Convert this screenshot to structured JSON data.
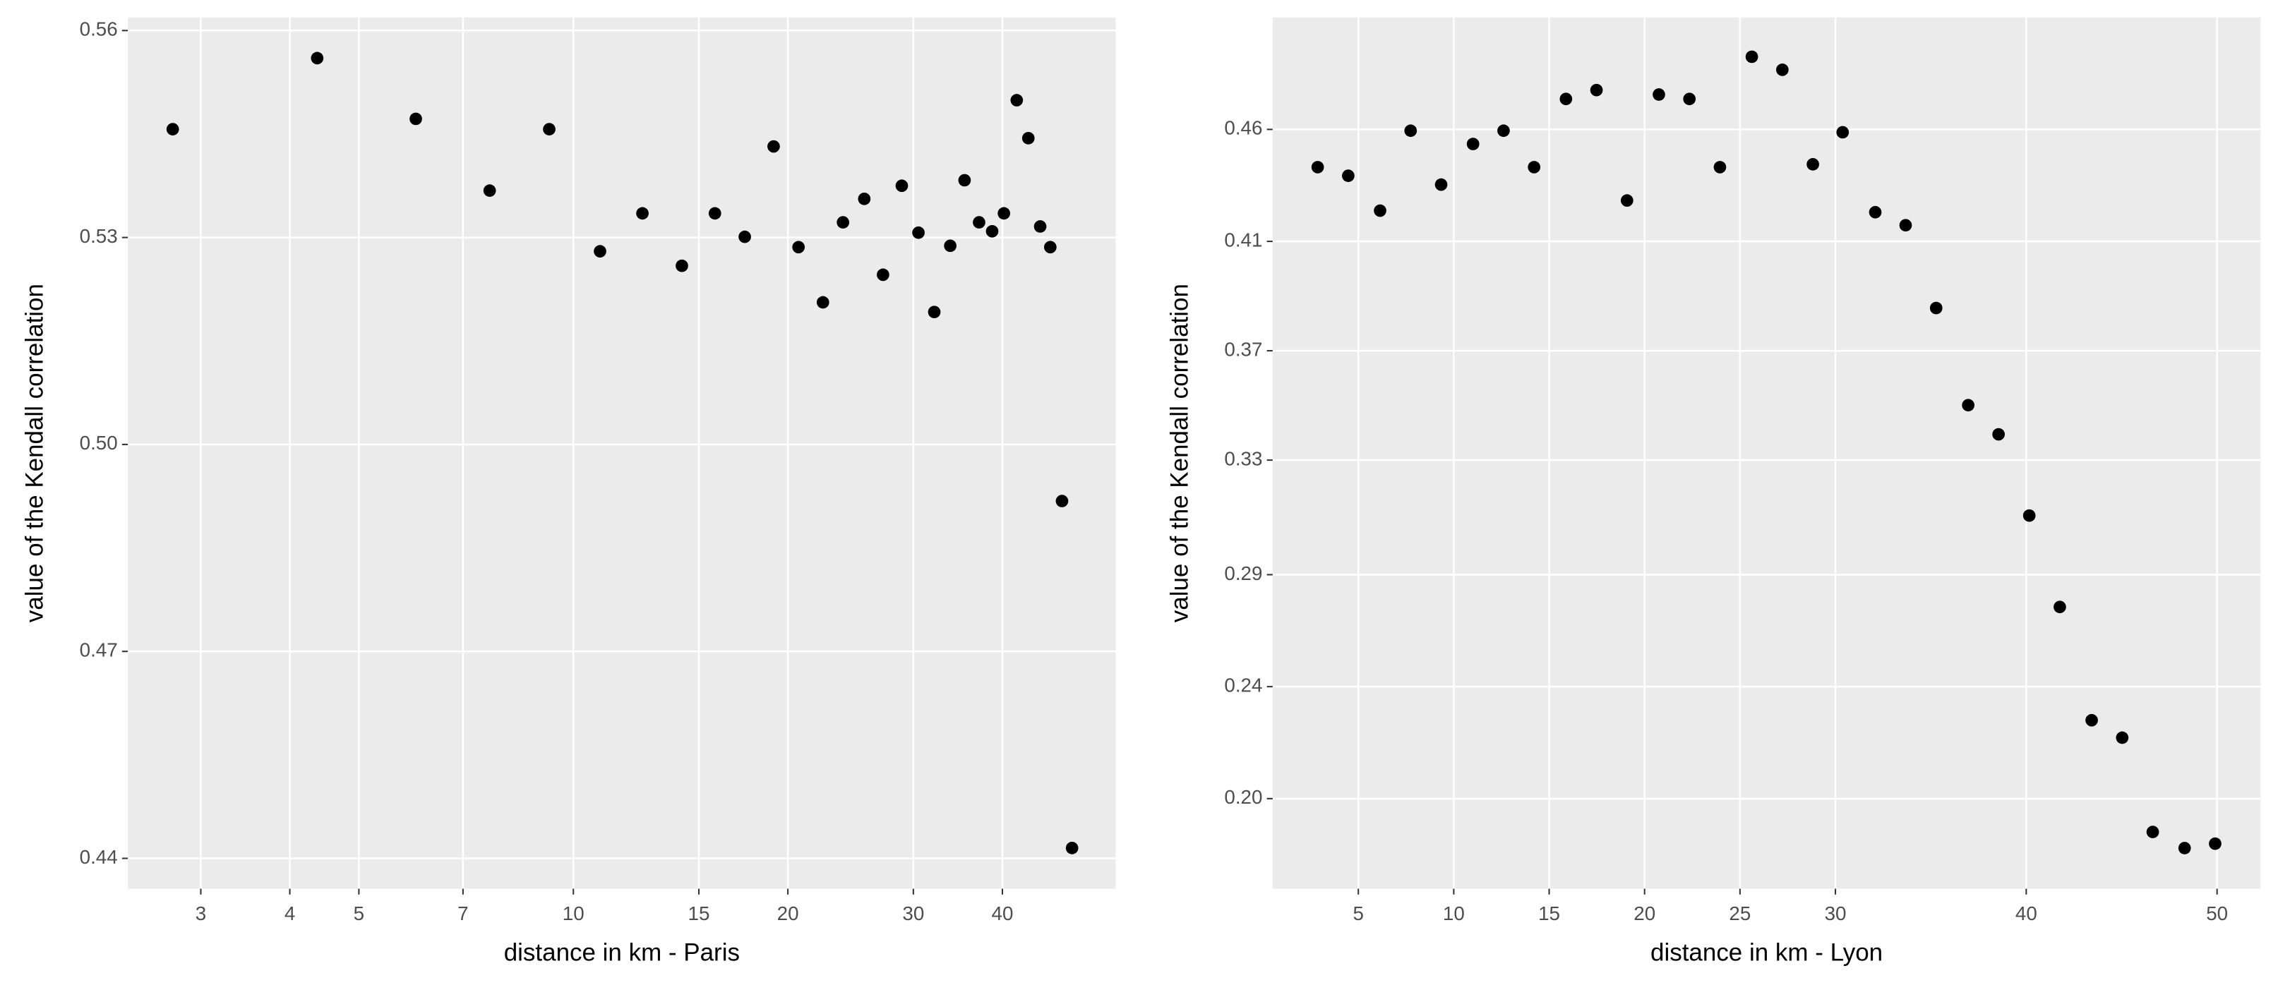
{
  "chart_data": [
    {
      "type": "scatter",
      "log_x": true,
      "grid": true,
      "color": "#000000",
      "xlabel": "distance in km - Paris",
      "ylabel": "value of the Kendall correlation",
      "xlim": [
        2.37,
        57.7
      ],
      "ylim": [
        0.4356,
        0.5619
      ],
      "xticks": [
        3,
        4,
        5,
        7,
        10,
        15,
        20,
        30,
        40
      ],
      "yticks": [
        0.44,
        0.47,
        {
          "value": 0.5,
          "label": "0.50"
        },
        0.53,
        0.56
      ],
      "x": [
        2.74,
        4.37,
        6.01,
        7.63,
        9.25,
        10.9,
        12.5,
        14.2,
        15.8,
        17.4,
        19.1,
        20.7,
        22.4,
        23.9,
        25.6,
        27.2,
        28.9,
        30.5,
        32.1,
        33.8,
        35.4,
        37.1,
        38.7,
        40.2,
        41.9,
        43.5,
        45.2,
        46.7,
        48.5,
        50.1
      ],
      "values": [
        0.5457,
        0.556,
        0.5472,
        0.5368,
        0.5457,
        0.528,
        0.5335,
        0.5259,
        0.5335,
        0.5301,
        0.5432,
        0.5286,
        0.5206,
        0.5322,
        0.5356,
        0.5246,
        0.5375,
        0.5307,
        0.5192,
        0.5288,
        0.5383,
        0.5322,
        0.5309,
        0.5335,
        0.5499,
        0.5444,
        0.5316,
        0.5286,
        0.4918,
        0.4415
      ]
    },
    {
      "type": "scatter",
      "log_x": false,
      "grid": true,
      "color": "#000000",
      "xlabel": "distance in km - Lyon",
      "ylabel": "value of the Kendall correlation",
      "xlim": [
        0.51,
        52.28
      ],
      "ylim": [
        0.1654,
        0.5
      ],
      "xticks": [
        5,
        10,
        15,
        20,
        25,
        30,
        40,
        50
      ],
      "yticks": [
        {
          "value": 0.2,
          "label": "0.20"
        },
        {
          "value": 0.243,
          "label": "0.24"
        },
        {
          "value": 0.286,
          "label": "0.29"
        },
        0.33,
        {
          "value": 0.372,
          "label": "0.37"
        },
        {
          "value": 0.414,
          "label": "0.41"
        },
        {
          "value": 0.457,
          "label": "0.46"
        }
      ],
      "x": [
        2.87,
        4.47,
        6.14,
        7.74,
        9.34,
        11.01,
        12.61,
        14.21,
        15.88,
        17.48,
        19.08,
        20.75,
        22.35,
        23.95,
        25.62,
        27.22,
        28.82,
        30.38,
        32.09,
        33.68,
        35.28,
        36.96,
        38.55,
        40.16,
        41.76,
        43.43,
        45.03,
        46.63,
        48.3,
        49.9
      ],
      "values": [
        0.4425,
        0.4392,
        0.4258,
        0.4565,
        0.4358,
        0.4514,
        0.4565,
        0.4425,
        0.4687,
        0.4721,
        0.4297,
        0.4704,
        0.4687,
        0.4425,
        0.4849,
        0.4799,
        0.4436,
        0.4559,
        0.4252,
        0.4202,
        0.3884,
        0.3511,
        0.3399,
        0.3087,
        0.2736,
        0.2301,
        0.2234,
        0.1872,
        0.181,
        0.1827
      ]
    }
  ]
}
